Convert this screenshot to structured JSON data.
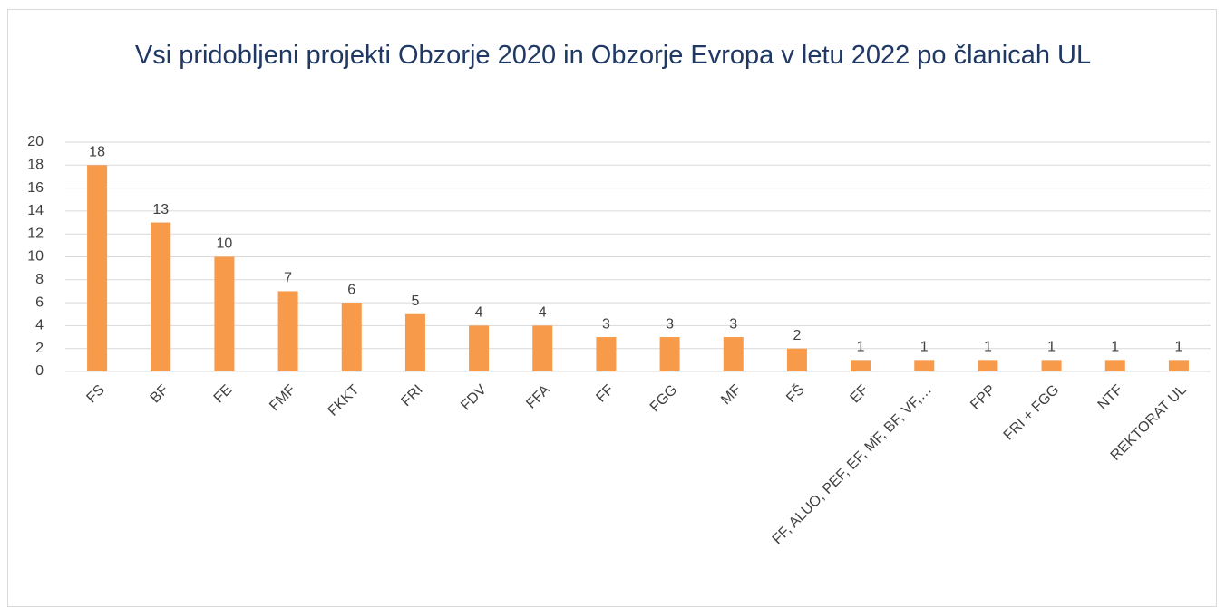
{
  "chart_data": {
    "type": "bar",
    "title": "Vsi pridobljeni projekti Obzorje 2020 in Obzorje Evropa v letu 2022 po članicah UL",
    "categories": [
      "FS",
      "BF",
      "FE",
      "FMF",
      "FKKT",
      "FRI",
      "FDV",
      "FFA",
      "FF",
      "FGG",
      "MF",
      "FŠ",
      "EF",
      "FF, ALUO, PEF, EF, MF, BF, VF,…",
      "FPP",
      "FRI + FGG",
      "NTF",
      "REKTORAT UL"
    ],
    "values": [
      18,
      13,
      10,
      7,
      6,
      5,
      4,
      4,
      3,
      3,
      3,
      2,
      1,
      1,
      1,
      1,
      1,
      1
    ],
    "color": "#f79a4a",
    "ylim": [
      0,
      20
    ],
    "yticks": [
      0,
      2,
      4,
      6,
      8,
      10,
      12,
      14,
      16,
      18,
      20
    ],
    "grid": true
  }
}
